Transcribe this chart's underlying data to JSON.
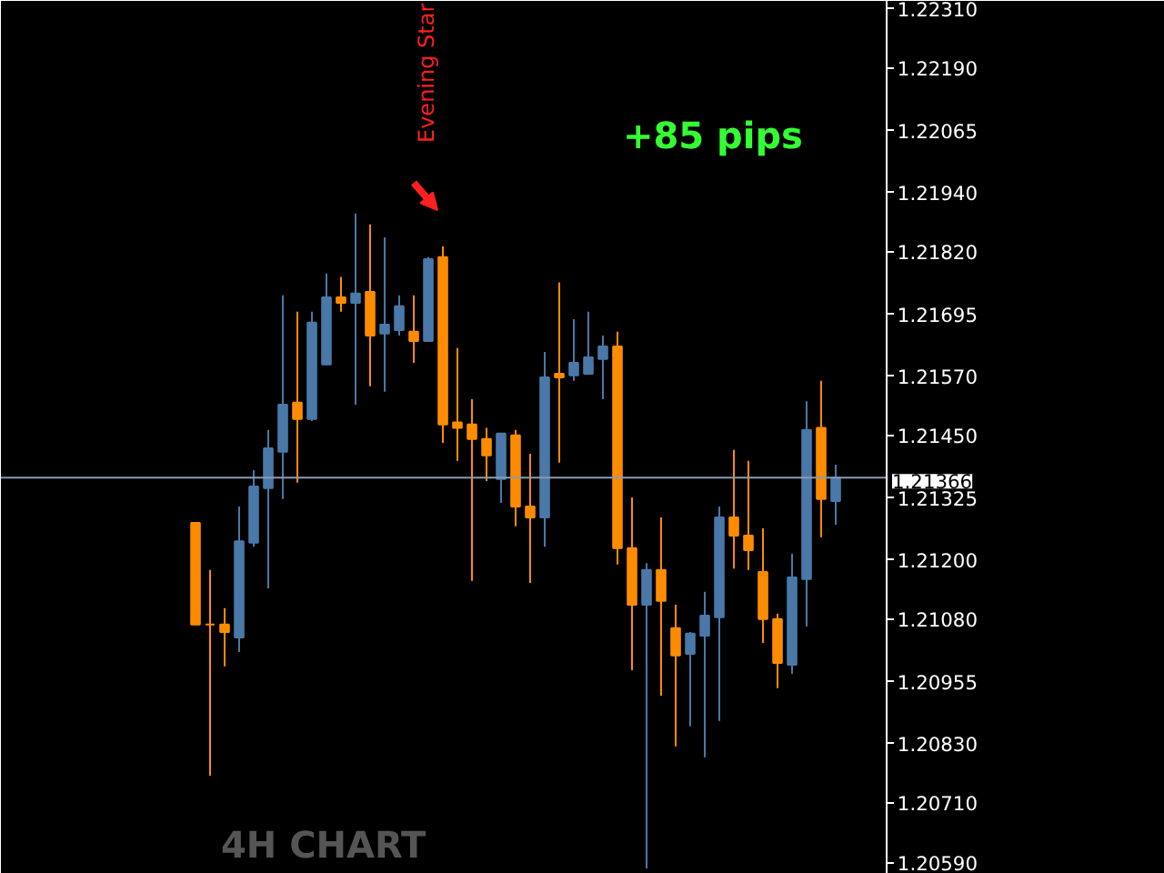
{
  "chart_data": {
    "type": "candlestick",
    "categories": [
      null,
      null,
      null,
      null,
      null,
      null,
      null,
      null,
      null,
      null,
      null,
      null,
      null,
      null,
      null,
      null,
      null,
      null,
      null,
      null,
      null,
      null,
      null,
      null,
      null,
      null,
      null,
      null,
      null,
      null,
      null,
      null,
      null,
      null,
      null,
      null,
      null,
      null,
      null,
      null,
      null,
      null,
      null,
      null,
      null
    ],
    "ohlc": [
      [
        1.21275,
        1.21275,
        1.2107,
        1.2107
      ],
      [
        1.2107,
        1.2118,
        1.20766,
        1.2107
      ],
      [
        1.2107,
        1.21103,
        1.20986,
        1.21055
      ],
      [
        1.21044,
        1.21308,
        1.21015,
        1.21238
      ],
      [
        1.21235,
        1.21381,
        1.21227,
        1.21348
      ],
      [
        1.21345,
        1.21462,
        1.21143,
        1.21425
      ],
      [
        1.21418,
        1.21733,
        1.21323,
        1.21513
      ],
      [
        1.21517,
        1.217,
        1.21356,
        1.21484
      ],
      [
        1.21484,
        1.217,
        1.2148,
        1.21678
      ],
      [
        1.21594,
        1.21777,
        1.21594,
        1.21729
      ],
      [
        1.21729,
        1.2177,
        1.217,
        1.21718
      ],
      [
        1.21718,
        1.21898,
        1.21513,
        1.21737
      ],
      [
        1.2174,
        1.21876,
        1.2155,
        1.21652
      ],
      [
        1.21656,
        1.2185,
        1.21539,
        1.21674
      ],
      [
        1.21663,
        1.21733,
        1.21652,
        1.21711
      ],
      [
        1.2166,
        1.21733,
        1.21597,
        1.21641
      ],
      [
        1.21641,
        1.2181,
        1.21641,
        1.21806
      ],
      [
        1.2181,
        1.21832,
        1.21436,
        1.21473
      ],
      [
        1.21477,
        1.21627,
        1.214,
        1.21466
      ],
      [
        1.21473,
        1.21524,
        1.21158,
        1.21444
      ],
      [
        1.21444,
        1.21466,
        1.21359,
        1.21411
      ],
      [
        1.21363,
        1.21455,
        1.21315,
        1.21455
      ],
      [
        1.21451,
        1.21462,
        1.21268,
        1.21308
      ],
      [
        1.21308,
        1.21414,
        1.21154,
        1.21286
      ],
      [
        1.21286,
        1.21619,
        1.21227,
        1.21568
      ],
      [
        1.21575,
        1.21759,
        1.21396,
        1.21568
      ],
      [
        1.21572,
        1.21685,
        1.21561,
        1.21597
      ],
      [
        1.21575,
        1.217,
        1.21575,
        1.21608
      ],
      [
        1.21605,
        1.21652,
        1.21524,
        1.2163
      ],
      [
        1.2163,
        1.2166,
        1.21191,
        1.21224
      ],
      [
        1.21224,
        1.21326,
        1.20978,
        1.2111
      ],
      [
        1.2111,
        1.21194,
        1.20579,
        1.2118
      ],
      [
        1.2118,
        1.21286,
        1.20927,
        1.21118
      ],
      [
        1.21063,
        1.2111,
        1.20825,
        1.21008
      ],
      [
        1.21011,
        1.21055,
        1.20865,
        1.21052
      ],
      [
        1.21048,
        1.21136,
        1.20803,
        1.21088
      ],
      [
        1.21085,
        1.21308,
        1.20876,
        1.21286
      ],
      [
        1.21286,
        1.21422,
        1.21183,
        1.21249
      ],
      [
        1.21249,
        1.214,
        1.2118,
        1.2122
      ],
      [
        1.21176,
        1.21264,
        1.21033,
        1.21081
      ],
      [
        1.21081,
        1.21092,
        1.20942,
        1.20993
      ],
      [
        1.20989,
        1.21213,
        1.20971,
        1.21165
      ],
      [
        1.21162,
        1.2152,
        1.21066,
        1.21462
      ],
      [
        1.21466,
        1.21561,
        1.21246,
        1.21323
      ],
      [
        1.21319,
        1.21392,
        1.21271,
        1.21366
      ]
    ],
    "colors": [
      "#ff8c00",
      "#ff8c00",
      "#ff8c00",
      "#4a78a8",
      "#4a78a8",
      "#4a78a8",
      "#4a78a8",
      "#ff8c00",
      "#4a78a8",
      "#4a78a8",
      "#ff8c00",
      "#4a78a8",
      "#ff8c00",
      "#4a78a8",
      "#4a78a8",
      "#ff8c00",
      "#4a78a8",
      "#ff8c00",
      "#ff8c00",
      "#ff8c00",
      "#ff8c00",
      "#4a78a8",
      "#ff8c00",
      "#ff8c00",
      "#4a78a8",
      "#ff8c00",
      "#4a78a8",
      "#4a78a8",
      "#4a78a8",
      "#ff8c00",
      "#ff8c00",
      "#4a78a8",
      "#ff8c00",
      "#ff8c00",
      "#4a78a8",
      "#4a78a8",
      "#4a78a8",
      "#ff8c00",
      "#ff8c00",
      "#ff8c00",
      "#ff8c00",
      "#4a78a8",
      "#4a78a8",
      "#ff8c00",
      "#4a78a8"
    ],
    "ylim": [
      1.20568,
      1.22326
    ],
    "yticks": [
      {
        "value": 1.2231,
        "label": "1.22310"
      },
      {
        "value": 1.2219,
        "label": "1.22190"
      },
      {
        "value": 1.22065,
        "label": "1.22065"
      },
      {
        "value": 1.2194,
        "label": "1.21940"
      },
      {
        "value": 1.2182,
        "label": "1.21820"
      },
      {
        "value": 1.21695,
        "label": "1.21695"
      },
      {
        "value": 1.2157,
        "label": "1.21570"
      },
      {
        "value": 1.2145,
        "label": "1.21450"
      },
      {
        "value": 1.21325,
        "label": "1.21325"
      },
      {
        "value": 1.212,
        "label": "1.21200"
      },
      {
        "value": 1.2108,
        "label": "1.21080"
      },
      {
        "value": 1.20955,
        "label": "1.20955"
      },
      {
        "value": 1.2083,
        "label": "1.20830"
      },
      {
        "value": 1.2071,
        "label": "1.20710"
      },
      {
        "value": 1.2059,
        "label": "1.20590"
      }
    ],
    "ref_lines": [
      {
        "axis": "y",
        "value": 1.21366,
        "label": "1.21366",
        "color": "#8a9bb0"
      }
    ],
    "annotations": [
      "Evening Star",
      "+85 pips",
      "4H CHART"
    ],
    "tick_labels": "y",
    "grid": false
  }
}
